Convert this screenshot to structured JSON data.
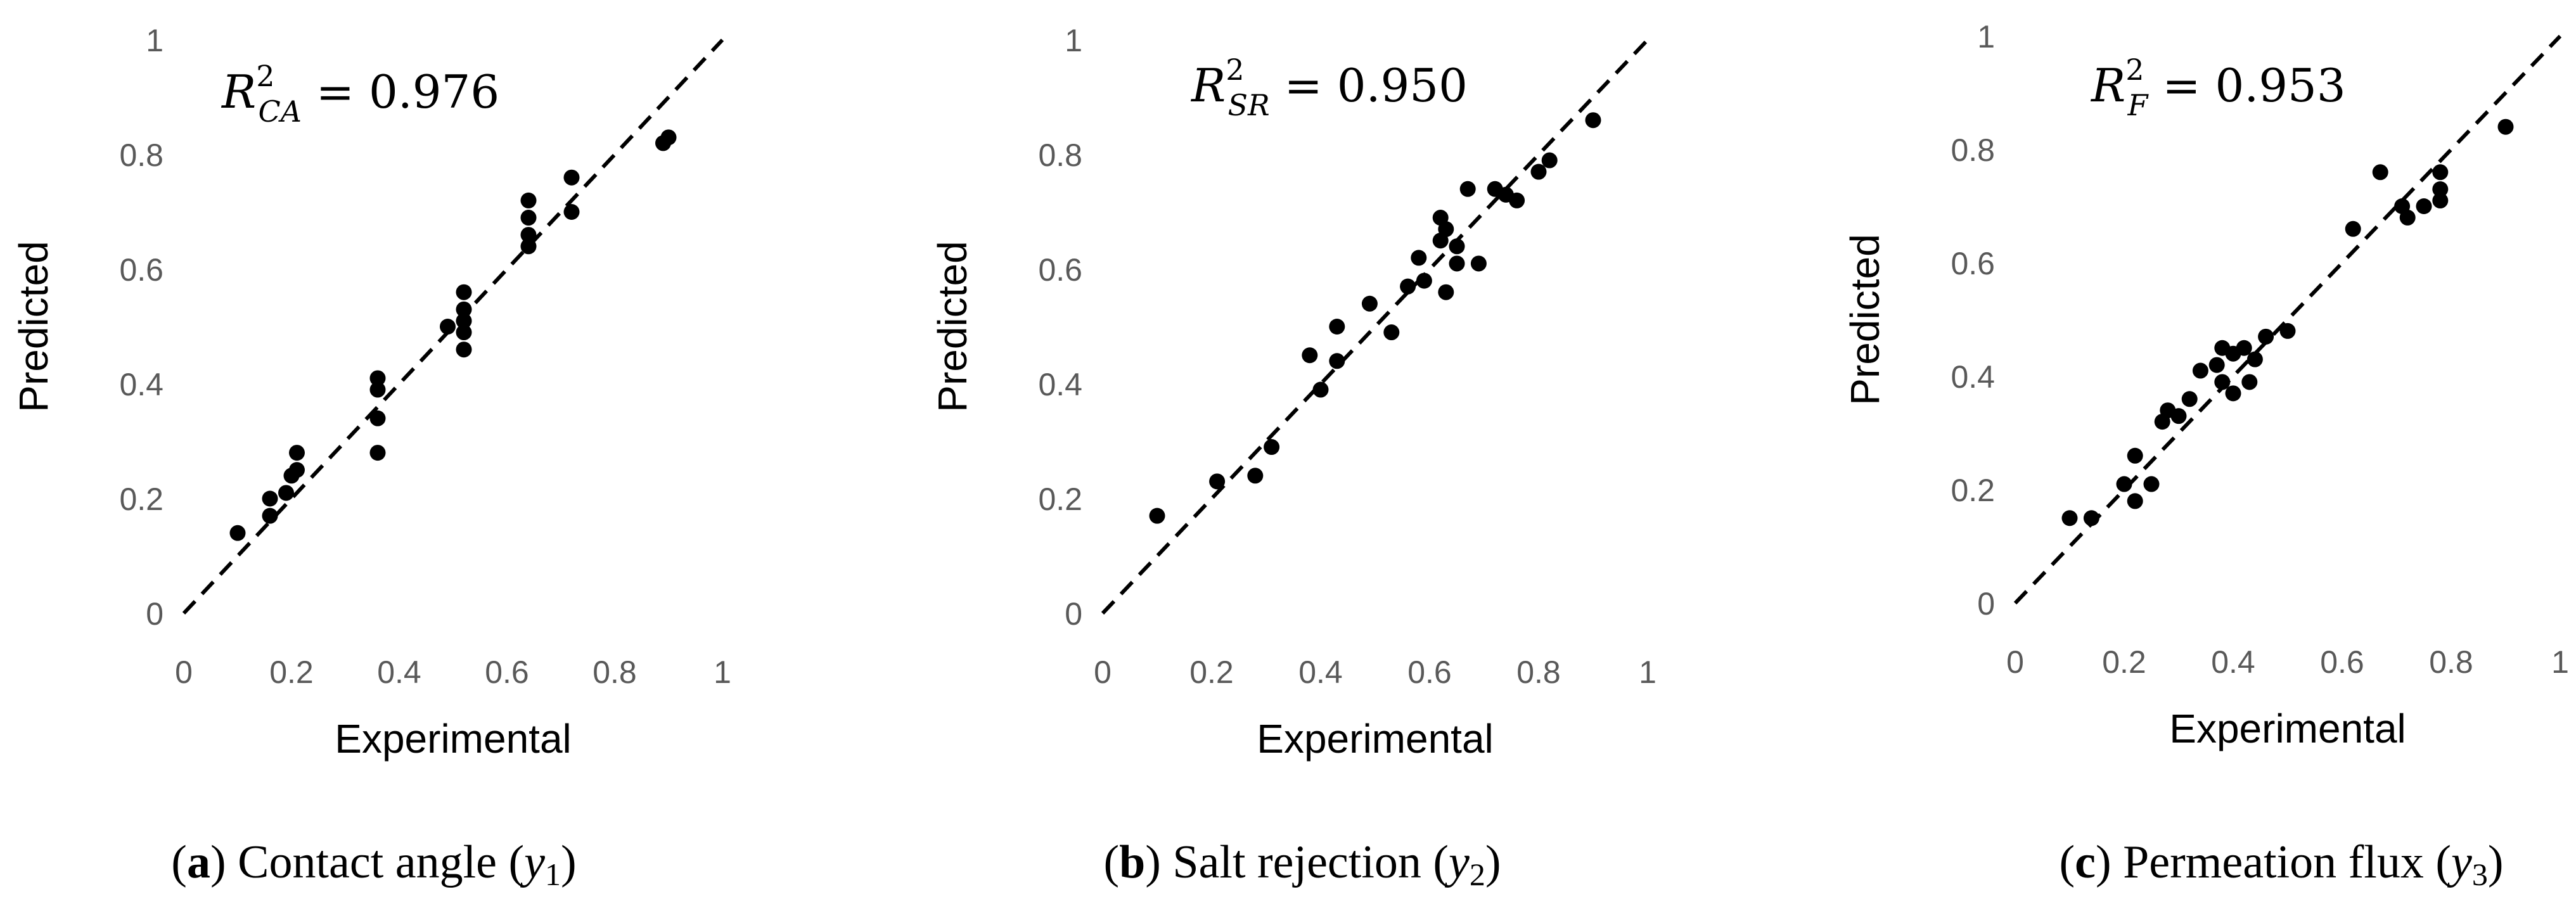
{
  "chart_data": [
    {
      "type": "scatter",
      "xlabel": "Experimental",
      "ylabel": "Predicted",
      "xlim": [
        0,
        1
      ],
      "ylim": [
        0,
        1
      ],
      "ticks": [
        "0",
        "0.2",
        "0.4",
        "0.6",
        "0.8",
        "1"
      ],
      "grid": false,
      "reference_line": "y = x (dashed)",
      "annotation": {
        "main": "R",
        "sup": "2",
        "sub": "CA",
        "value": " = 0.976"
      },
      "caption": {
        "letter": "a",
        "text": " Contact angle (",
        "var": "y",
        "sub": "1",
        "close": ")"
      },
      "x": [
        0.1,
        0.16,
        0.16,
        0.19,
        0.2,
        0.21,
        0.21,
        0.36,
        0.36,
        0.36,
        0.36,
        0.49,
        0.52,
        0.52,
        0.52,
        0.52,
        0.52,
        0.64,
        0.64,
        0.64,
        0.64,
        0.72,
        0.72,
        0.89,
        0.9
      ],
      "y": [
        0.14,
        0.17,
        0.2,
        0.21,
        0.24,
        0.25,
        0.28,
        0.28,
        0.34,
        0.39,
        0.41,
        0.5,
        0.46,
        0.49,
        0.51,
        0.53,
        0.56,
        0.64,
        0.66,
        0.69,
        0.72,
        0.7,
        0.76,
        0.82,
        0.83
      ]
    },
    {
      "type": "scatter",
      "xlabel": "Experimental",
      "ylabel": "Predicted",
      "xlim": [
        0,
        1
      ],
      "ylim": [
        0,
        1
      ],
      "ticks": [
        "0",
        "0.2",
        "0.4",
        "0.6",
        "0.8",
        "1"
      ],
      "grid": false,
      "reference_line": "y = x (dashed)",
      "annotation": {
        "main": "R",
        "sup": "2",
        "sub": "SR",
        "value": " = 0.950"
      },
      "caption": {
        "letter": "b",
        "text": " Salt rejection (",
        "var": "y",
        "sub": "2",
        "close": ")"
      },
      "x": [
        0.1,
        0.21,
        0.28,
        0.31,
        0.38,
        0.4,
        0.43,
        0.43,
        0.49,
        0.53,
        0.56,
        0.58,
        0.59,
        0.62,
        0.62,
        0.63,
        0.63,
        0.65,
        0.65,
        0.67,
        0.69,
        0.72,
        0.74,
        0.76,
        0.8,
        0.82,
        0.9
      ],
      "y": [
        0.17,
        0.23,
        0.24,
        0.29,
        0.45,
        0.39,
        0.44,
        0.5,
        0.54,
        0.49,
        0.57,
        0.62,
        0.58,
        0.65,
        0.69,
        0.56,
        0.67,
        0.61,
        0.64,
        0.74,
        0.61,
        0.74,
        0.73,
        0.72,
        0.77,
        0.79,
        0.86
      ]
    },
    {
      "type": "scatter",
      "xlabel": "Experimental",
      "ylabel": "Predicted",
      "xlim": [
        0,
        1
      ],
      "ylim": [
        0,
        1
      ],
      "ticks": [
        "0",
        "0.2",
        "0.4",
        "0.6",
        "0.8",
        "1"
      ],
      "grid": false,
      "reference_line": "y = x (dashed)",
      "annotation": {
        "main": "R",
        "sup": "2",
        "sub": "F",
        "value": " = 0.953"
      },
      "caption": {
        "letter": "c",
        "text": " Permeation flux (",
        "var": "y",
        "sub": "3",
        "close": ")"
      },
      "x": [
        0.1,
        0.14,
        0.2,
        0.22,
        0.22,
        0.25,
        0.27,
        0.28,
        0.3,
        0.32,
        0.34,
        0.37,
        0.38,
        0.38,
        0.4,
        0.4,
        0.42,
        0.43,
        0.44,
        0.46,
        0.5,
        0.62,
        0.67,
        0.71,
        0.72,
        0.75,
        0.78,
        0.78,
        0.78,
        0.9
      ],
      "y": [
        0.15,
        0.15,
        0.21,
        0.18,
        0.26,
        0.21,
        0.32,
        0.34,
        0.33,
        0.36,
        0.41,
        0.42,
        0.39,
        0.45,
        0.37,
        0.44,
        0.45,
        0.39,
        0.43,
        0.47,
        0.48,
        0.66,
        0.76,
        0.7,
        0.68,
        0.7,
        0.71,
        0.73,
        0.76,
        0.84
      ]
    }
  ]
}
